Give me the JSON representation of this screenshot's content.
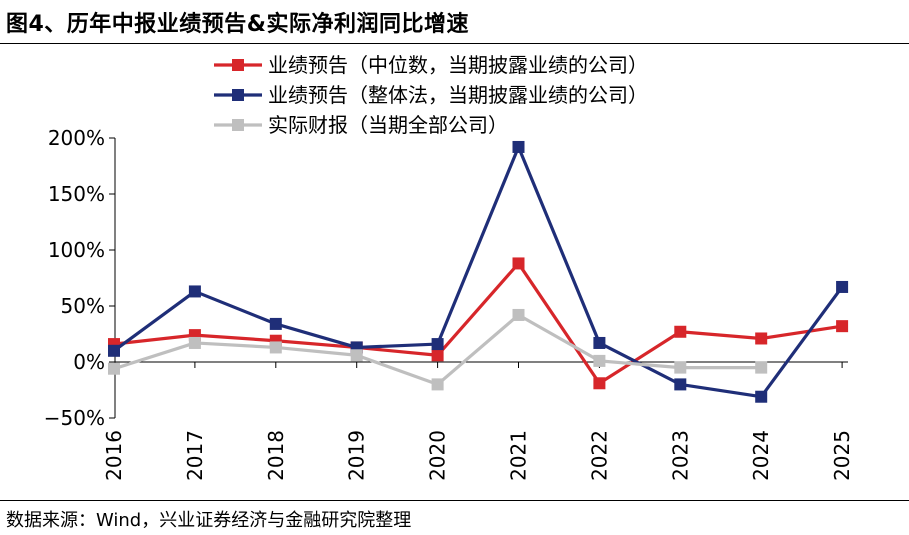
{
  "figure": {
    "title": "图4、历年中报业绩预告&实际净利润同比增速",
    "source": "数据来源：Wind，兴业证券经济与金融研究院整理"
  },
  "chart_data": {
    "type": "line",
    "x": [
      "2016",
      "2017",
      "2018",
      "2019",
      "2020",
      "2021",
      "2022",
      "2023",
      "2024",
      "2025"
    ],
    "ylim": [
      -50,
      200
    ],
    "yticks": [
      -50,
      0,
      50,
      100,
      150,
      200
    ],
    "ytick_labels": [
      "−50%",
      "0%",
      "50%",
      "100%",
      "150%",
      "200%"
    ],
    "grid": false,
    "legend": "top-center",
    "series": [
      {
        "name": "业绩预告（中位数，当期披露业绩的公司）",
        "color": "#d7262a",
        "values": [
          16,
          24,
          19,
          13,
          6,
          88,
          -19,
          27,
          21,
          32
        ]
      },
      {
        "name": "业绩预告（整体法，当期披露业绩的公司）",
        "color": "#1f2e78",
        "values": [
          10,
          63,
          34,
          13,
          16,
          192,
          17,
          -20,
          -31,
          67
        ]
      },
      {
        "name": "实际财报（当期全部公司）",
        "color": "#bfbfbf",
        "values": [
          -6,
          17,
          13,
          6,
          -20,
          42,
          1,
          -5,
          -5,
          null
        ]
      }
    ]
  }
}
